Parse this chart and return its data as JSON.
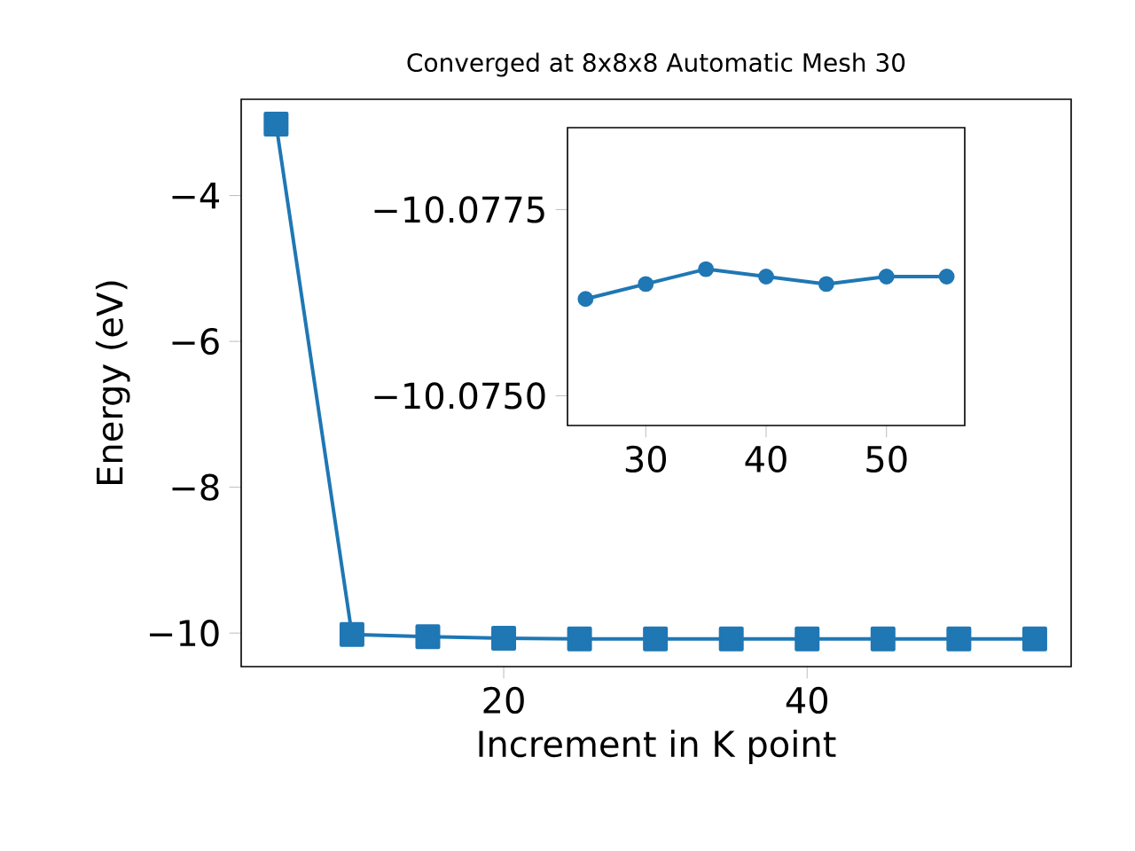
{
  "chart_data": [
    {
      "type": "line",
      "title": "Converged at 8x8x8 Automatic Mesh 30",
      "xlabel": "Increment in K point",
      "ylabel": "Energy (eV)",
      "x": [
        5,
        10,
        15,
        20,
        25,
        30,
        35,
        40,
        45,
        50,
        55
      ],
      "series": [
        {
          "color": "#1f77b4",
          "values": [
            -3.02,
            -10.02,
            -10.05,
            -10.07,
            -10.08,
            -10.08,
            -10.08,
            -10.08,
            -10.08,
            -10.08,
            -10.08
          ]
        }
      ],
      "marker": "square",
      "xlim": [
        2.7,
        57.4
      ],
      "ylim": [
        -10.46,
        -2.68
      ],
      "xticks": [
        20,
        40
      ],
      "yticks": [
        {
          "value": -10,
          "label": "−10"
        },
        {
          "value": -8,
          "label": "−8"
        },
        {
          "value": -6,
          "label": "−6"
        },
        {
          "value": -4,
          "label": "−4"
        }
      ]
    },
    {
      "type": "line",
      "x": [
        25,
        30,
        35,
        40,
        45,
        50,
        55
      ],
      "series": [
        {
          "color": "#1f77b4",
          "values": [
            -10.0763,
            -10.0765,
            -10.0767,
            -10.0766,
            -10.0765,
            -10.0766,
            -10.0766
          ]
        }
      ],
      "marker": "circle",
      "xlim": [
        23.5,
        56.5
      ],
      "ylim": [
        -10.0746,
        -10.0786
      ],
      "xticks": [
        30,
        40,
        50
      ],
      "yticks": [
        {
          "value": -10.0775,
          "label": "−10.0775"
        },
        {
          "value": -10.075,
          "label": "−10.0750"
        }
      ]
    }
  ]
}
